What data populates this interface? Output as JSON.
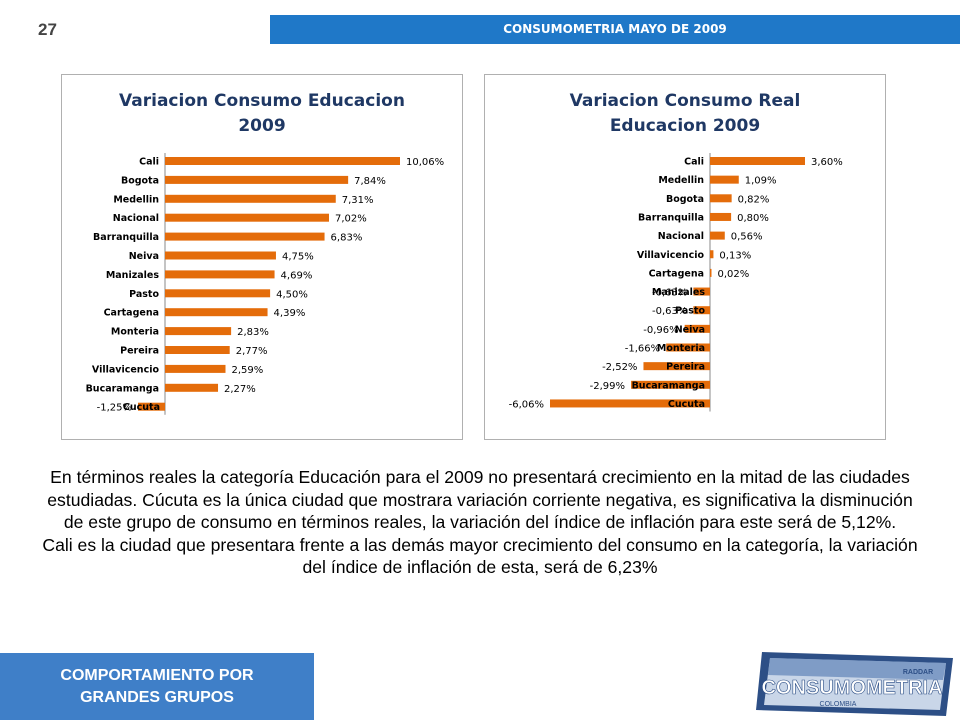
{
  "page_number": "27",
  "header": {
    "title": "CONSUMOMETRIA MAYO DE 2009"
  },
  "charts": [
    {
      "title_line1": "Variacion Consumo Educacion",
      "title_line2": "2009"
    },
    {
      "title_line1": "Variacion Consumo Real",
      "title_line2": "Educacion 2009"
    }
  ],
  "chart_data": [
    {
      "type": "bar",
      "orientation": "horizontal",
      "title": "Variacion Consumo Educacion 2009",
      "categories": [
        "Cali",
        "Bogota",
        "Medellin",
        "Nacional",
        "Barranquilla",
        "Neiva",
        "Manizales",
        "Pasto",
        "Cartagena",
        "Monteria",
        "Pereira",
        "Villavicencio",
        "Bucaramanga",
        "Cucuta"
      ],
      "values": [
        10.06,
        7.84,
        7.31,
        7.02,
        6.83,
        4.75,
        4.69,
        4.5,
        4.39,
        2.83,
        2.77,
        2.59,
        2.27,
        -1.25
      ],
      "labels": [
        "10,06%",
        "7,84%",
        "7,31%",
        "7,02%",
        "6,83%",
        "4,75%",
        "4,69%",
        "4,50%",
        "4,39%",
        "2,83%",
        "2,77%",
        "2,59%",
        "2,27%",
        "-1,25%"
      ],
      "xlim": [
        -1.25,
        10.06
      ],
      "bar_color": "#e46c0a",
      "grid": false,
      "legend": "none"
    },
    {
      "type": "bar",
      "orientation": "horizontal",
      "title": "Variacion Consumo Real Educacion 2009",
      "categories": [
        "Cali",
        "Medellin",
        "Bogota",
        "Barranquilla",
        "Nacional",
        "Villavicencio",
        "Cartagena",
        "Manizales",
        "Pasto",
        "Neiva",
        "Monteria",
        "Pereira",
        "Bucaramanga",
        "Cucuta"
      ],
      "values": [
        3.6,
        1.09,
        0.82,
        0.8,
        0.56,
        0.13,
        0.02,
        -0.63,
        -0.63,
        -0.96,
        -1.66,
        -2.52,
        -2.99,
        -6.06
      ],
      "labels": [
        "3,60%",
        "1,09%",
        "0,82%",
        "0,80%",
        "0,56%",
        "0,13%",
        "0,02%",
        "-0,63%",
        "-0,63%",
        "-0,96%",
        "-1,66%",
        "-2,52%",
        "-2,99%",
        "-6,06%"
      ],
      "xlim": [
        -6.06,
        3.6
      ],
      "bar_color": "#e46c0a",
      "grid": false,
      "legend": "none"
    }
  ],
  "body": {
    "paragraph1": "En términos reales la categoría Educación para el 2009 no presentará crecimiento en la mitad de las ciudades estudiadas. Cúcuta es la única ciudad que mostrara variación corriente negativa, es significativa la disminución de este grupo de consumo en términos reales, la variación del índice de inflación para este será de 5,12%.",
    "paragraph2": "Cali es la ciudad que presentara frente a las demás mayor crecimiento del consumo en la categoría, la variación del índice de inflación de esta, será de 6,23%"
  },
  "footer": {
    "line1": "COMPORTAMIENTO POR",
    "line2": "GRANDES GRUPOS"
  },
  "logo": {
    "text": "CONSUMOMETRIA",
    "subtext": "COLOMBIA",
    "badge": "RADDAR"
  }
}
